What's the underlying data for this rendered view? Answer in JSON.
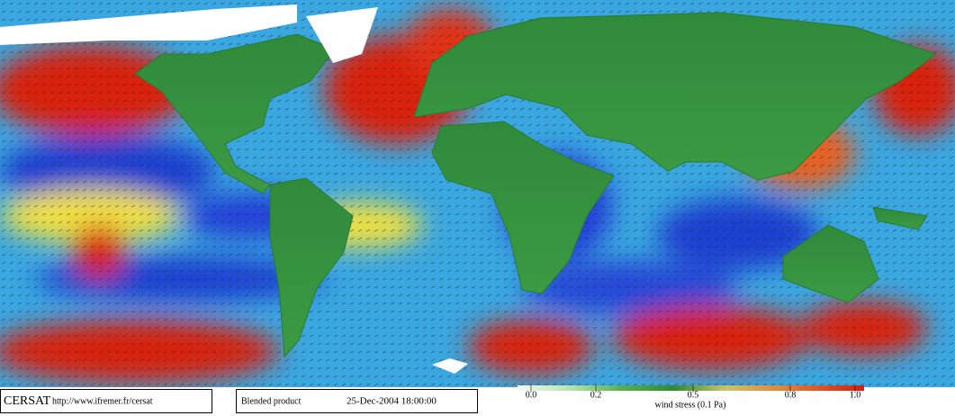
{
  "footer": {
    "logo": "CERSAT",
    "url": "http://www.ifremer.fr/cersat",
    "product": "Blended product",
    "date": "25-Dec-2004 18:00:00"
  },
  "colorbar": {
    "label": "wind stress (0.1 Pa)",
    "lim": [
      0,
      1
    ],
    "ticks": [
      {
        "value": 0,
        "label": "0.0"
      },
      0.2,
      0.5,
      0.8,
      {
        "value": 1,
        "label": "1.0"
      }
    ]
  }
}
